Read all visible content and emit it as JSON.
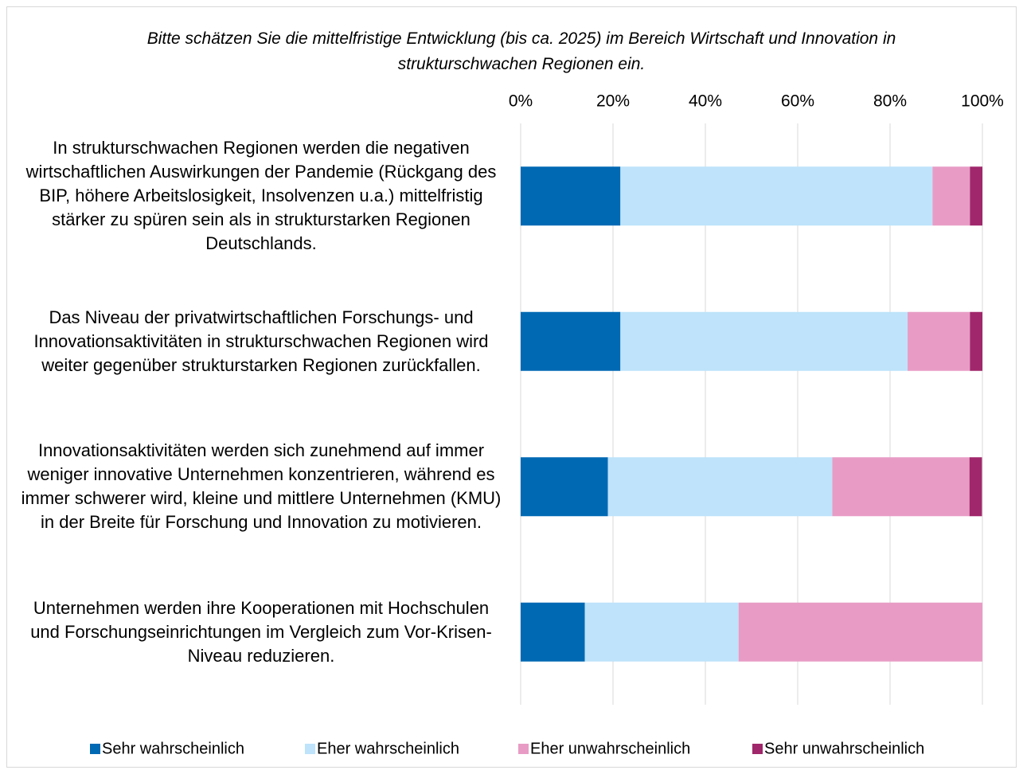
{
  "chart_data": {
    "type": "stacked_bar_horizontal",
    "title": "Bitte schätzen Sie die mittelfristige Entwicklung (bis ca. 2025) im Bereich Wirtschaft und Innovation in strukturschwachen Regionen ein.",
    "categories": [
      "In strukturschwachen Regionen werden die negativen wirtschaftlichen Auswirkungen der Pandemie (Rückgang des BIP, höhere Arbeitslosigkeit, Insolvenzen u.a.) mittelfristig stärker zu spüren sein als in strukturstarken Regionen Deutschlands.",
      "Das Niveau der privatwirtschaftlichen Forschungs- und Innovationsaktivitäten in strukturschwachen Regionen wird weiter gegenüber strukturstarken Regionen zurückfallen.",
      "Innovationsaktivitäten werden sich zunehmend auf immer weniger innovative Unternehmen konzentrieren, während es immer schwerer wird, kleine und mittlere Unternehmen (KMU) in der Breite für Forschung und Innovation zu motivieren.",
      "Unternehmen werden ihre Kooperationen mit Hochschulen und Forschungseinrichtungen im Vergleich zum Vor-Krisen-Niveau reduzieren."
    ],
    "series": [
      {
        "name": "Sehr wahrscheinlich",
        "color": "#0069b4",
        "values": [
          21.6,
          21.6,
          18.9,
          13.9
        ]
      },
      {
        "name": "Eher wahrscheinlich",
        "color": "#bee3fb",
        "values": [
          67.6,
          62.2,
          48.6,
          33.3
        ]
      },
      {
        "name": "Eher unwahrscheinlich",
        "color": "#e89cc5",
        "values": [
          8.1,
          13.5,
          29.7,
          52.8
        ]
      },
      {
        "name": "Sehr unwahrscheinlich",
        "color": "#a0276b",
        "values": [
          2.7,
          2.7,
          2.7,
          0
        ]
      }
    ],
    "xlim": [
      0,
      100
    ],
    "xticks": [
      {
        "value": 0,
        "label": "0%"
      },
      {
        "value": 20,
        "label": "20%"
      },
      {
        "value": 40,
        "label": "40%"
      },
      {
        "value": 60,
        "label": "60%"
      },
      {
        "value": 80,
        "label": "80%"
      },
      {
        "value": 100,
        "label": "100%"
      }
    ],
    "grid": true,
    "legend": "bottom"
  }
}
